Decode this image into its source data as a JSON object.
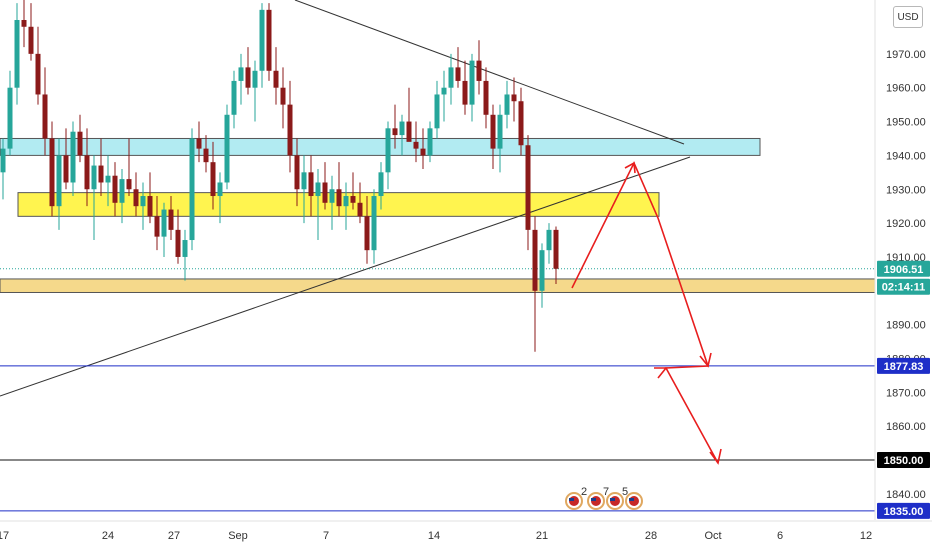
{
  "currency": "USD",
  "colors": {
    "up": "#26a69a",
    "down": "#8b1a1a",
    "cyan_zone": "#b2ebf2",
    "yellow_zone": "#fff44f",
    "gold_zone": "#f5d98b",
    "projection": "#e81e1e",
    "support_blue": "#1e2ec8",
    "support_black": "#111111",
    "trend": "#333333"
  },
  "chart_data": {
    "type": "candlestick",
    "title": "",
    "y_axis": {
      "min": 1831,
      "max": 1985,
      "tick_labels": [
        "1970.00",
        "1960.00",
        "1950.00",
        "1940.00",
        "1930.00",
        "1920.00",
        "1910.00",
        "1890.00",
        "1880.00",
        "1870.00",
        "1860.00",
        "1840.00"
      ]
    },
    "x_axis": {
      "tick_labels": [
        "17",
        "24",
        "27",
        "Sep",
        "7",
        "14",
        "21",
        "28",
        "Oct",
        "6",
        "12"
      ]
    },
    "price_tags": [
      {
        "name": "last-price",
        "label": "1906.51",
        "value": 1906.51,
        "color": "#26a69a"
      },
      {
        "name": "countdown",
        "label": "02:14:11",
        "value": 1901.2,
        "color": "#26a69a"
      },
      {
        "name": "level-1877",
        "label": "1877.83",
        "value": 1877.83,
        "color": "#1e2ec8"
      },
      {
        "name": "level-1850",
        "label": "1850.00",
        "value": 1850.0,
        "color": "#000000"
      },
      {
        "name": "level-1835",
        "label": "1835.00",
        "value": 1835.0,
        "color": "#1e2ec8"
      }
    ],
    "zones": [
      {
        "name": "cyan-resistance-zone",
        "from": 1940.0,
        "to": 1945.0,
        "color": "#b2ebf2"
      },
      {
        "name": "yellow-resistance-zone",
        "from": 1922.0,
        "to": 1929.0,
        "color": "#fff44f"
      },
      {
        "name": "gold-support-zone",
        "from": 1899.5,
        "to": 1903.5,
        "color": "#f5d98b"
      }
    ],
    "horizontal_levels": [
      {
        "name": "support-1877",
        "value": 1877.83,
        "color": "#1e2ec8"
      },
      {
        "name": "support-1850",
        "value": 1850.0,
        "color": "#111111"
      },
      {
        "name": "support-1835",
        "value": 1835.0,
        "color": "#1e2ec8"
      }
    ],
    "event_icons": [
      {
        "name": "event-flag-icon",
        "count": "2"
      },
      {
        "name": "event-flag-icon",
        "count": "7"
      },
      {
        "name": "event-flag-icon",
        "count": "5"
      },
      {
        "name": "event-flag-icon",
        "count": ""
      }
    ],
    "candles": [
      [
        1935,
        1945,
        1927,
        1942
      ],
      [
        1942,
        1965,
        1940,
        1960
      ],
      [
        1960,
        1985,
        1955,
        1980
      ],
      [
        1980,
        1986,
        1972,
        1978
      ],
      [
        1978,
        1985,
        1968,
        1970
      ],
      [
        1970,
        1978,
        1955,
        1958
      ],
      [
        1958,
        1966,
        1940,
        1945
      ],
      [
        1945,
        1950,
        1922,
        1925
      ],
      [
        1925,
        1945,
        1918,
        1940
      ],
      [
        1940,
        1948,
        1930,
        1932
      ],
      [
        1932,
        1950,
        1928,
        1947
      ],
      [
        1947,
        1952,
        1938,
        1940
      ],
      [
        1940,
        1948,
        1925,
        1930
      ],
      [
        1930,
        1940,
        1915,
        1937
      ],
      [
        1937,
        1945,
        1928,
        1932
      ],
      [
        1932,
        1940,
        1925,
        1934
      ],
      [
        1934,
        1938,
        1922,
        1926
      ],
      [
        1926,
        1936,
        1920,
        1933
      ],
      [
        1933,
        1945,
        1928,
        1930
      ],
      [
        1930,
        1935,
        1922,
        1925
      ],
      [
        1925,
        1932,
        1918,
        1928
      ],
      [
        1928,
        1935,
        1920,
        1922
      ],
      [
        1922,
        1928,
        1912,
        1916
      ],
      [
        1916,
        1926,
        1910,
        1924
      ],
      [
        1924,
        1928,
        1915,
        1918
      ],
      [
        1918,
        1924,
        1908,
        1910
      ],
      [
        1910,
        1918,
        1903,
        1915
      ],
      [
        1915,
        1948,
        1912,
        1945
      ],
      [
        1945,
        1950,
        1938,
        1942
      ],
      [
        1942,
        1946,
        1935,
        1938
      ],
      [
        1938,
        1944,
        1924,
        1928
      ],
      [
        1928,
        1935,
        1920,
        1932
      ],
      [
        1932,
        1955,
        1930,
        1952
      ],
      [
        1952,
        1965,
        1948,
        1962
      ],
      [
        1962,
        1970,
        1955,
        1966
      ],
      [
        1966,
        1972,
        1958,
        1960
      ],
      [
        1960,
        1968,
        1950,
        1965
      ],
      [
        1965,
        1985,
        1960,
        1983
      ],
      [
        1983,
        1985,
        1962,
        1965
      ],
      [
        1965,
        1972,
        1955,
        1960
      ],
      [
        1960,
        1966,
        1948,
        1955
      ],
      [
        1955,
        1962,
        1935,
        1940
      ],
      [
        1940,
        1945,
        1925,
        1930
      ],
      [
        1930,
        1940,
        1920,
        1935
      ],
      [
        1935,
        1940,
        1922,
        1928
      ],
      [
        1928,
        1936,
        1915,
        1932
      ],
      [
        1932,
        1938,
        1924,
        1926
      ],
      [
        1926,
        1934,
        1918,
        1930
      ],
      [
        1930,
        1938,
        1922,
        1925
      ],
      [
        1925,
        1932,
        1918,
        1928
      ],
      [
        1928,
        1935,
        1924,
        1926
      ],
      [
        1926,
        1932,
        1920,
        1922
      ],
      [
        1922,
        1928,
        1908,
        1912
      ],
      [
        1912,
        1930,
        1908,
        1928
      ],
      [
        1928,
        1938,
        1924,
        1935
      ],
      [
        1935,
        1950,
        1930,
        1948
      ],
      [
        1948,
        1955,
        1942,
        1946
      ],
      [
        1946,
        1952,
        1940,
        1950
      ],
      [
        1950,
        1960,
        1945,
        1944
      ],
      [
        1944,
        1950,
        1938,
        1942
      ],
      [
        1942,
        1948,
        1936,
        1940
      ],
      [
        1940,
        1950,
        1938,
        1948
      ],
      [
        1948,
        1962,
        1945,
        1958
      ],
      [
        1958,
        1965,
        1950,
        1960
      ],
      [
        1960,
        1970,
        1955,
        1966
      ],
      [
        1966,
        1972,
        1960,
        1962
      ],
      [
        1962,
        1968,
        1952,
        1955
      ],
      [
        1955,
        1970,
        1950,
        1968
      ],
      [
        1968,
        1974,
        1958,
        1962
      ],
      [
        1962,
        1966,
        1948,
        1952
      ],
      [
        1952,
        1955,
        1936,
        1942
      ],
      [
        1942,
        1955,
        1935,
        1952
      ],
      [
        1952,
        1962,
        1948,
        1958
      ],
      [
        1958,
        1963,
        1950,
        1956
      ],
      [
        1956,
        1960,
        1940,
        1943
      ],
      [
        1943,
        1946,
        1912,
        1918
      ],
      [
        1918,
        1922,
        1882,
        1900
      ],
      [
        1900,
        1914,
        1895,
        1912
      ],
      [
        1912,
        1920,
        1908,
        1918
      ],
      [
        1918,
        1919,
        1902,
        1906.5
      ]
    ]
  }
}
